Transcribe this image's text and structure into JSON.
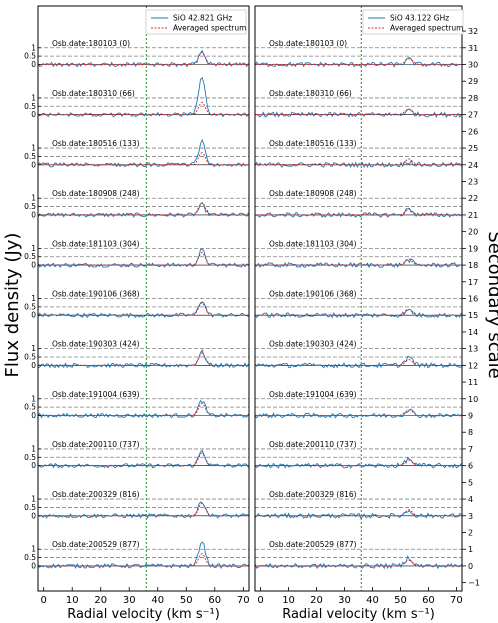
{
  "chart_data": {
    "type": "line",
    "y_axis_label": "Flux density (Jy)",
    "secondary_axis_label": "Secondary scale",
    "secondary_axis": {
      "range": [
        -1.5,
        33.5
      ],
      "ticks": [
        -1,
        0,
        1,
        2,
        3,
        4,
        5,
        6,
        7,
        8,
        9,
        10,
        11,
        12,
        13,
        14,
        15,
        16,
        17,
        18,
        19,
        20,
        21,
        22,
        23,
        24,
        25,
        26,
        27,
        28,
        29,
        30,
        31,
        32
      ]
    },
    "offset_step": 3,
    "reference_lines_y": [
      0.5,
      1
    ],
    "left_y_ticks": [
      "1",
      "0.5",
      "0"
    ],
    "vertical_marker_x": 36,
    "observations": [
      {
        "label": "Osb.date:180103 (0)",
        "offset": 30
      },
      {
        "label": "Osb.date:180310 (66)",
        "offset": 27
      },
      {
        "label": "Osb.date:180516 (133)",
        "offset": 24
      },
      {
        "label": "Osb.date:180908 (248)",
        "offset": 21
      },
      {
        "label": "Osb.date:181103 (304)",
        "offset": 18
      },
      {
        "label": "Osb.date:190106 (368)",
        "offset": 15
      },
      {
        "label": "Osb.date:190303 (424)",
        "offset": 12
      },
      {
        "label": "Osb.date:191004 (639)",
        "offset": 9
      },
      {
        "label": "Osb.date:200110 (737)",
        "offset": 6
      },
      {
        "label": "Osb.date:200329 (816)",
        "offset": 3
      },
      {
        "label": "Osb.date:200529 (877)",
        "offset": 0
      }
    ],
    "panels": [
      {
        "legend": [
          "SiO 42.821 GHz",
          "Averaged spectrum"
        ],
        "xlabel": "Radial velocity (km s⁻¹)",
        "xlim": [
          -2,
          72
        ],
        "x_ticks": [
          0,
          10,
          20,
          30,
          40,
          50,
          60,
          70
        ],
        "noise": 0.18,
        "averaged_peak": {
          "center": 55.5,
          "height": 0.75,
          "width": 1.6
        },
        "observed_peaks": [
          0.7,
          2.2,
          1.4,
          0.6,
          0.9,
          0.9,
          0.8,
          0.9,
          0.9,
          0.9,
          1.5
        ]
      },
      {
        "legend": [
          "SiO 43.122 GHz",
          "Averaged spectrum"
        ],
        "xlabel": "Radial velocity (km s⁻¹)",
        "xlim": [
          -2,
          72
        ],
        "x_ticks": [
          0,
          10,
          20,
          30,
          40,
          50,
          60,
          70
        ],
        "noise": 0.2,
        "averaged_peak": {
          "center": 53,
          "height": 0.35,
          "width": 1.8
        },
        "observed_peaks": [
          0.3,
          0.25,
          0.2,
          0.35,
          0.3,
          0.3,
          0.5,
          0.35,
          0.4,
          0.3,
          0.5
        ]
      }
    ],
    "colors": {
      "observed": "#1f77b4",
      "averaged": "#d62728",
      "marker": "#2ca02c",
      "reference": "#808080"
    }
  }
}
